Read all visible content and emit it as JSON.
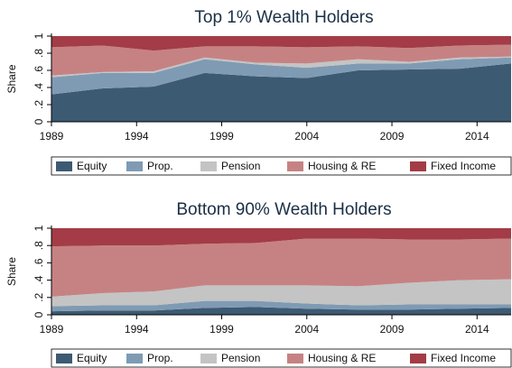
{
  "chart_data": [
    {
      "type": "area",
      "stacked": true,
      "title": "Top 1% Wealth Holders",
      "ylabel": "Share",
      "x": [
        1989,
        1992,
        1995,
        1998,
        2001,
        2004,
        2007,
        2010,
        2013,
        2016
      ],
      "xlim": [
        1989,
        2016
      ],
      "xticks": [
        1989,
        1994,
        1999,
        2004,
        2009,
        2014
      ],
      "ylim": [
        0,
        1
      ],
      "yticks": [
        0,
        {
          "value": 0.2,
          "label": ".2"
        },
        {
          "value": 0.4,
          "label": ".4"
        },
        {
          "value": 0.6,
          "label": ".6"
        },
        {
          "value": 0.8,
          "label": ".8"
        },
        1
      ],
      "series": [
        {
          "name": "Equity",
          "color": "#3d5a73",
          "values": [
            0.32,
            0.39,
            0.41,
            0.57,
            0.53,
            0.51,
            0.6,
            0.61,
            0.62,
            0.68
          ]
        },
        {
          "name": "Prop.",
          "color": "#7f9bb3",
          "values": [
            0.2,
            0.18,
            0.16,
            0.16,
            0.14,
            0.12,
            0.08,
            0.07,
            0.11,
            0.07
          ]
        },
        {
          "name": "Pension",
          "color": "#c4c4c4",
          "values": [
            0.02,
            0.01,
            0.02,
            0.02,
            0.02,
            0.05,
            0.05,
            0.02,
            0.02,
            0.01
          ]
        },
        {
          "name": "Housing & RE",
          "color": "#c68283",
          "values": [
            0.33,
            0.31,
            0.24,
            0.13,
            0.19,
            0.19,
            0.15,
            0.16,
            0.14,
            0.14
          ]
        },
        {
          "name": "Fixed Income",
          "color": "#a33c46",
          "values": [
            0.13,
            0.11,
            0.17,
            0.12,
            0.12,
            0.13,
            0.12,
            0.14,
            0.11,
            0.1
          ]
        }
      ]
    },
    {
      "type": "area",
      "stacked": true,
      "title": "Bottom 90% Wealth Holders",
      "ylabel": "Share",
      "x": [
        1989,
        1992,
        1995,
        1998,
        2001,
        2004,
        2007,
        2010,
        2013,
        2016
      ],
      "xlim": [
        1989,
        2016
      ],
      "xticks": [
        1989,
        1994,
        1999,
        2004,
        2009,
        2014
      ],
      "ylim": [
        0,
        1
      ],
      "yticks": [
        0,
        {
          "value": 0.2,
          "label": ".2"
        },
        {
          "value": 0.4,
          "label": ".4"
        },
        {
          "value": 0.6,
          "label": ".6"
        },
        {
          "value": 0.8,
          "label": ".8"
        },
        1
      ],
      "series": [
        {
          "name": "Equity",
          "color": "#3d5a73",
          "values": [
            0.04,
            0.05,
            0.05,
            0.08,
            0.09,
            0.07,
            0.06,
            0.06,
            0.07,
            0.08
          ]
        },
        {
          "name": "Prop.",
          "color": "#7f9bb3",
          "values": [
            0.06,
            0.06,
            0.06,
            0.08,
            0.07,
            0.06,
            0.05,
            0.06,
            0.05,
            0.04
          ]
        },
        {
          "name": "Pension",
          "color": "#c4c4c4",
          "values": [
            0.11,
            0.14,
            0.16,
            0.18,
            0.18,
            0.21,
            0.22,
            0.25,
            0.28,
            0.29
          ]
        },
        {
          "name": "Housing & RE",
          "color": "#c68283",
          "values": [
            0.58,
            0.55,
            0.53,
            0.48,
            0.49,
            0.54,
            0.55,
            0.5,
            0.47,
            0.47
          ]
        },
        {
          "name": "Fixed Income",
          "color": "#a33c46",
          "values": [
            0.21,
            0.2,
            0.2,
            0.18,
            0.17,
            0.12,
            0.12,
            0.13,
            0.13,
            0.12
          ]
        }
      ]
    }
  ]
}
